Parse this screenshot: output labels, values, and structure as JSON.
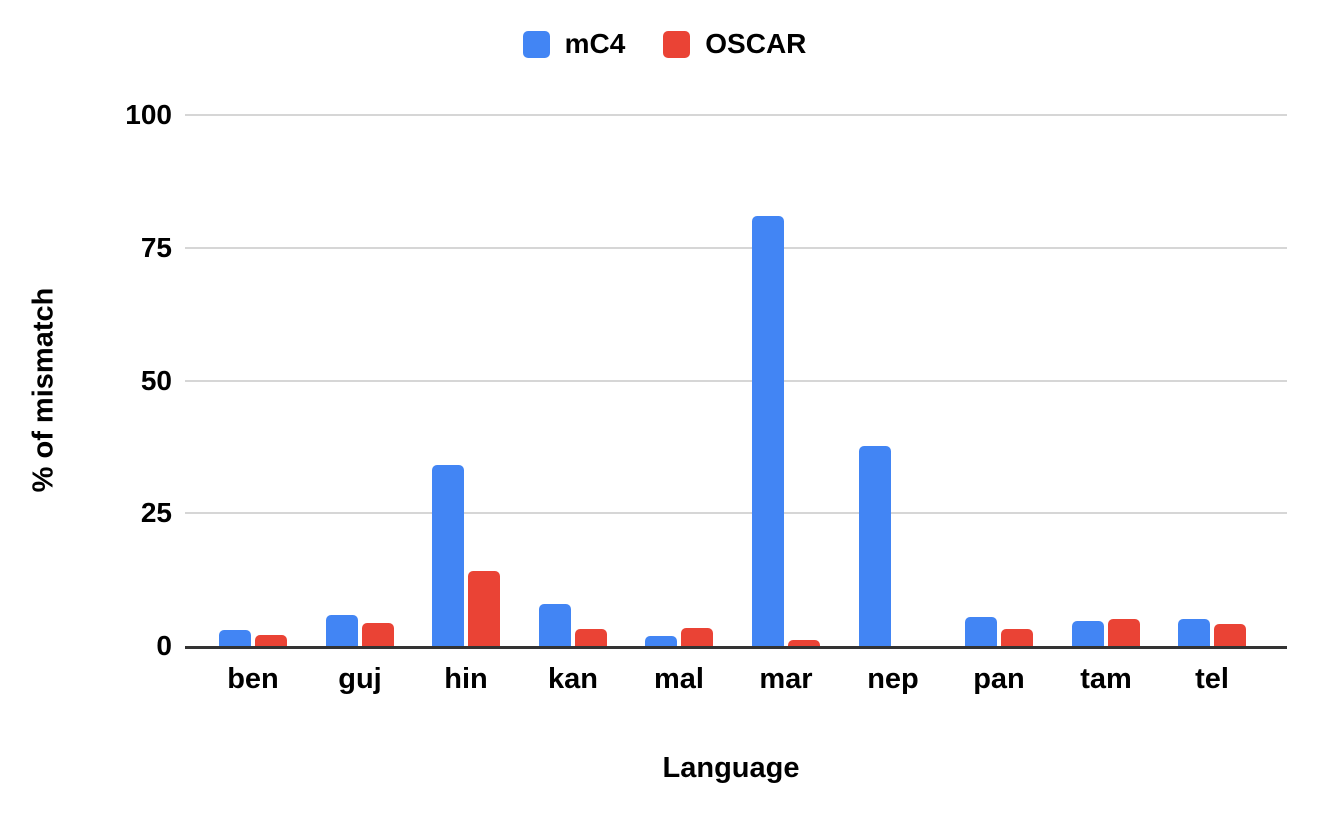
{
  "chart_data": {
    "type": "bar",
    "title": "",
    "categories": [
      "ben",
      "guj",
      "hin",
      "kan",
      "mal",
      "mar",
      "nep",
      "pan",
      "tam",
      "tel"
    ],
    "series": [
      {
        "name": "mC4",
        "color": "#4285F4",
        "values": [
          3.0,
          5.8,
          34.1,
          7.9,
          1.9,
          81.0,
          37.6,
          5.5,
          4.7,
          5.1
        ]
      },
      {
        "name": "OSCAR",
        "color": "#EA4335",
        "values": [
          2.1,
          4.4,
          14.1,
          3.2,
          3.3,
          1.2,
          0,
          3.2,
          5.1,
          4.2
        ]
      }
    ],
    "xlabel": "Language",
    "ylabel": "% of mismatch",
    "ylim": [
      0,
      100
    ],
    "yticks": [
      0,
      25,
      50,
      75,
      100
    ],
    "grid": true,
    "legend_position": "top"
  },
  "colors": {
    "background": "#ffffff",
    "gridline": "#d6d6d6",
    "axis_line": "#333333",
    "text": "#000000"
  }
}
